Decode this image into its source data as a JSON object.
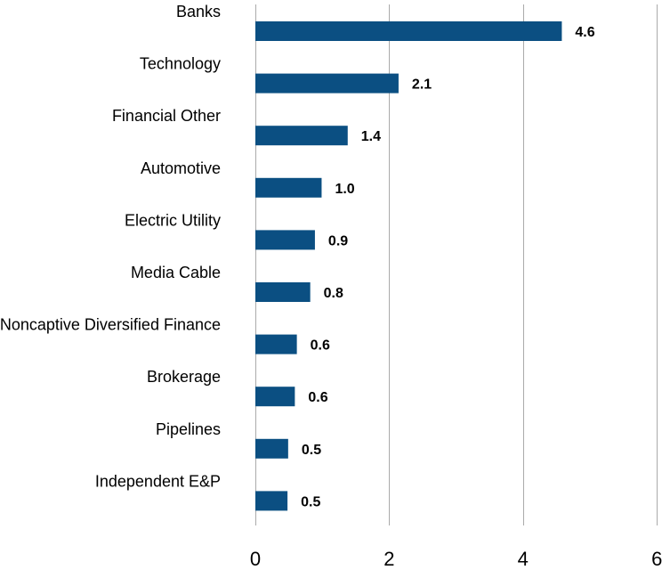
{
  "chart_data": {
    "type": "bar",
    "orientation": "horizontal",
    "categories": [
      "Banks",
      "Technology",
      "Financial Other",
      "Automotive",
      "Electric Utility",
      "Media Cable",
      "Noncaptive Diversified Finance",
      "Brokerage",
      "Pipelines",
      "Independent E&P"
    ],
    "values": [
      4.58,
      2.14,
      1.38,
      0.99,
      0.89,
      0.82,
      0.62,
      0.59,
      0.49,
      0.48
    ],
    "value_labels": [
      "4.6",
      "2.1",
      "1.4",
      "1.0",
      "0.9",
      "0.8",
      "0.6",
      "0.6",
      "0.5",
      "0.5"
    ],
    "xlim": [
      0,
      6
    ],
    "x_ticks": [
      0,
      2,
      4,
      6
    ],
    "x_tick_labels": [
      "0",
      "2",
      "4",
      "6"
    ],
    "grid": "vertical",
    "bar_color": "#0b4f82",
    "grid_color": "#aaaaaa"
  }
}
